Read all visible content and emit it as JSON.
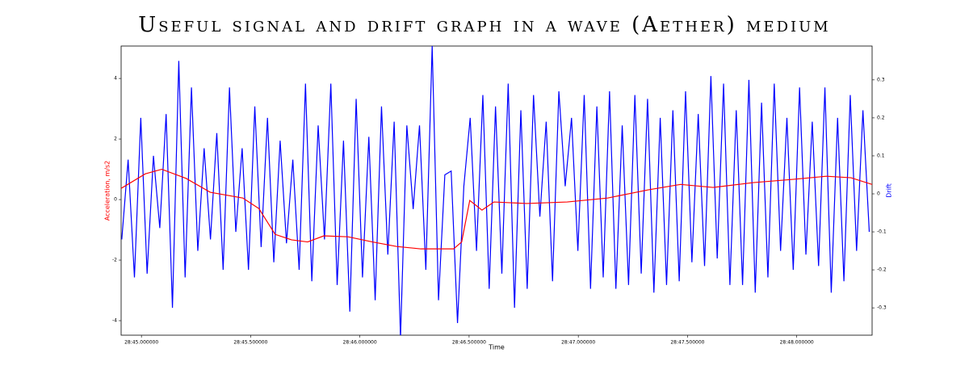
{
  "chart_data": {
    "type": "line",
    "title": "Useful signal and drift graph in a wave (Aether) medium",
    "xlabel": "Time",
    "ylabel": "Acceleration, m/s2",
    "y2label": "Drift",
    "xlim": [
      44.907,
      48.345
    ],
    "xticks": [
      {
        "value": 45.0,
        "label": "28:45.000000"
      },
      {
        "value": 45.5,
        "label": "28:45.500000"
      },
      {
        "value": 46.0,
        "label": "28:46.000000"
      },
      {
        "value": 46.5,
        "label": "28:46.500000"
      },
      {
        "value": 47.0,
        "label": "28:47.000000"
      },
      {
        "value": 47.5,
        "label": "28:47.500000"
      },
      {
        "value": 48.0,
        "label": "28:48.000000"
      }
    ],
    "ylim": [
      -4.48,
      5.07
    ],
    "yticks": [
      -4,
      -2,
      0,
      2,
      4
    ],
    "y2lim": [
      -0.372,
      0.389
    ],
    "y2ticks": [
      -0.3,
      -0.2,
      -0.1,
      0.0,
      0.1,
      0.2,
      0.3
    ],
    "series": [
      {
        "color": "#0000ff",
        "axis": "y2",
        "x": [
          44.91,
          44.939,
          44.968,
          44.997,
          45.026,
          45.055,
          45.084,
          45.113,
          45.142,
          45.171,
          45.2,
          45.229,
          45.258,
          45.287,
          45.316,
          45.345,
          45.374,
          45.403,
          45.432,
          45.461,
          45.49,
          45.519,
          45.548,
          45.577,
          45.606,
          45.635,
          45.664,
          45.693,
          45.722,
          45.751,
          45.78,
          45.809,
          45.838,
          45.867,
          45.896,
          45.925,
          45.954,
          45.983,
          46.012,
          46.041,
          46.07,
          46.099,
          46.128,
          46.157,
          46.186,
          46.215,
          46.244,
          46.273,
          46.302,
          46.331,
          46.36,
          46.389,
          46.418,
          46.447,
          46.476,
          46.505,
          46.534,
          46.563,
          46.592,
          46.621,
          46.65,
          46.679,
          46.708,
          46.737,
          46.766,
          46.795,
          46.824,
          46.853,
          46.882,
          46.911,
          46.94,
          46.969,
          46.998,
          47.027,
          47.056,
          47.085,
          47.114,
          47.143,
          47.172,
          47.201,
          47.23,
          47.259,
          47.288,
          47.317,
          47.346,
          47.375,
          47.404,
          47.433,
          47.462,
          47.491,
          47.52,
          47.549,
          47.578,
          47.607,
          47.636,
          47.665,
          47.694,
          47.723,
          47.752,
          47.781,
          47.81,
          47.839,
          47.868,
          47.897,
          47.926,
          47.955,
          47.984,
          48.013,
          48.042,
          48.071,
          48.1,
          48.129,
          48.158,
          48.187,
          48.216,
          48.245,
          48.274,
          48.303,
          48.332
        ],
        "values": [
          -0.12,
          0.09,
          -0.22,
          0.2,
          -0.21,
          0.1,
          -0.09,
          0.21,
          -0.3,
          0.35,
          -0.22,
          0.28,
          -0.15,
          0.12,
          -0.12,
          0.16,
          -0.2,
          0.28,
          -0.1,
          0.12,
          -0.2,
          0.23,
          -0.14,
          0.2,
          -0.18,
          0.14,
          -0.13,
          0.09,
          -0.2,
          0.29,
          -0.23,
          0.18,
          -0.12,
          0.29,
          -0.24,
          0.14,
          -0.31,
          0.25,
          -0.22,
          0.15,
          -0.28,
          0.23,
          -0.16,
          0.19,
          -0.38,
          0.18,
          -0.04,
          0.18,
          -0.2,
          0.39,
          -0.28,
          0.05,
          0.06,
          -0.34,
          0.02,
          0.2,
          -0.15,
          0.26,
          -0.25,
          0.23,
          -0.21,
          0.29,
          -0.3,
          0.22,
          -0.25,
          0.26,
          -0.06,
          0.19,
          -0.23,
          0.27,
          0.02,
          0.2,
          -0.15,
          0.26,
          -0.25,
          0.23,
          -0.22,
          0.27,
          -0.25,
          0.18,
          -0.24,
          0.26,
          -0.21,
          0.25,
          -0.26,
          0.2,
          -0.24,
          0.22,
          -0.23,
          0.27,
          -0.18,
          0.21,
          -0.19,
          0.31,
          -0.17,
          0.29,
          -0.24,
          0.22,
          -0.24,
          0.3,
          -0.26,
          0.24,
          -0.22,
          0.29,
          -0.15,
          0.2,
          -0.2,
          0.28,
          -0.16,
          0.19,
          -0.19,
          0.28,
          -0.26,
          0.2,
          -0.23,
          0.26,
          -0.15,
          0.22,
          -0.1
        ]
      },
      {
        "color": "#ff0000",
        "axis": "y",
        "x": [
          44.907,
          45.018,
          45.093,
          45.204,
          45.315,
          45.464,
          45.538,
          45.612,
          45.687,
          45.761,
          45.835,
          45.946,
          46.058,
          46.169,
          46.28,
          46.429,
          46.466,
          46.503,
          46.559,
          46.614,
          46.763,
          46.949,
          47.134,
          47.32,
          47.468,
          47.617,
          47.802,
          47.988,
          48.136,
          48.248,
          48.345
        ],
        "values": [
          0.37,
          0.85,
          1.0,
          0.7,
          0.24,
          0.05,
          -0.3,
          -1.15,
          -1.33,
          -1.4,
          -1.2,
          -1.23,
          -1.4,
          -1.55,
          -1.63,
          -1.63,
          -1.4,
          -0.03,
          -0.35,
          -0.08,
          -0.13,
          -0.08,
          0.05,
          0.32,
          0.5,
          0.4,
          0.56,
          0.67,
          0.77,
          0.72,
          0.5
        ]
      }
    ]
  }
}
